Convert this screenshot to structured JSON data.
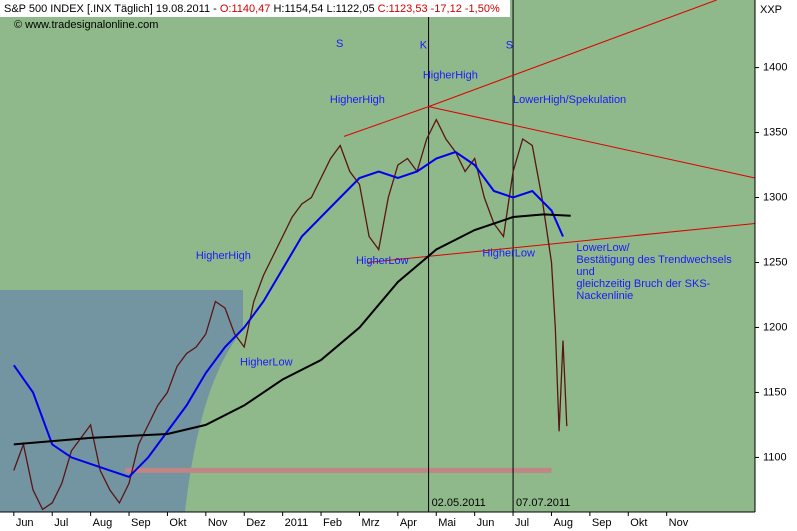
{
  "chart_data": {
    "type": "line",
    "header_parts": [
      {
        "text": "S&P 500 INDEX [.INX  Täglich] 19.08.2011 - ",
        "color": "#000000"
      },
      {
        "text": "O:1140,47",
        "color": "#d00000"
      },
      {
        "text": " H:1154,54 L:1122,05 ",
        "color": "#000000"
      },
      {
        "text": "C:1123,53 -17,12 -1,50%",
        "color": "#d00000"
      }
    ],
    "watermark": "© www.tradesignalonline.com",
    "axis_label": "XXP",
    "xlim": [
      -0.36,
      19.3
    ],
    "ylim": [
      1058,
      1452
    ],
    "yticks": [
      1100,
      1150,
      1200,
      1250,
      1300,
      1350,
      1400
    ],
    "xticks": [
      {
        "value": 0,
        "label": "Jun"
      },
      {
        "value": 1,
        "label": "Jul"
      },
      {
        "value": 2,
        "label": "Aug"
      },
      {
        "value": 3,
        "label": "Sep"
      },
      {
        "value": 4,
        "label": "Okt"
      },
      {
        "value": 5,
        "label": "Nov"
      },
      {
        "value": 6,
        "label": "Dez"
      },
      {
        "value": 7,
        "label": "2011"
      },
      {
        "value": 8,
        "label": "Feb"
      },
      {
        "value": 9,
        "label": "Mrz"
      },
      {
        "value": 10,
        "label": "Apr"
      },
      {
        "value": 11,
        "label": "Mai"
      },
      {
        "value": 12,
        "label": "Jun"
      },
      {
        "value": 13,
        "label": "Jul"
      },
      {
        "value": 14,
        "label": "Aug"
      },
      {
        "value": 15,
        "label": "Sep"
      },
      {
        "value": 16,
        "label": "Okt"
      },
      {
        "value": 17,
        "label": "Nov"
      }
    ],
    "series": [
      {
        "color": "#5a1414",
        "x": [
          0,
          0.25,
          0.5,
          0.75,
          1,
          1.25,
          1.5,
          1.75,
          2,
          2.25,
          2.5,
          2.75,
          3,
          3.25,
          3.5,
          3.75,
          4,
          4.25,
          4.5,
          4.75,
          5,
          5.25,
          5.5,
          5.75,
          6,
          6.25,
          6.5,
          6.75,
          7,
          7.25,
          7.5,
          7.75,
          8,
          8.25,
          8.5,
          8.75,
          9,
          9.25,
          9.5,
          9.75,
          10,
          10.25,
          10.5,
          10.75,
          11,
          11.25,
          11.5,
          11.75,
          12,
          12.25,
          12.5,
          12.75,
          13,
          13.25,
          13.5,
          13.75,
          14,
          14.1,
          14.2,
          14.3,
          14.4
        ],
        "values": [
          1090,
          1110,
          1075,
          1060,
          1065,
          1080,
          1105,
          1115,
          1125,
          1090,
          1075,
          1065,
          1080,
          1110,
          1125,
          1140,
          1150,
          1170,
          1180,
          1185,
          1195,
          1220,
          1215,
          1195,
          1185,
          1220,
          1240,
          1255,
          1270,
          1285,
          1295,
          1300,
          1315,
          1330,
          1340,
          1320,
          1310,
          1270,
          1260,
          1300,
          1325,
          1330,
          1320,
          1345,
          1360,
          1345,
          1335,
          1320,
          1330,
          1300,
          1280,
          1270,
          1320,
          1345,
          1340,
          1300,
          1250,
          1200,
          1120,
          1190,
          1124
        ]
      },
      {
        "color": "#0000ee",
        "x": [
          0,
          0.5,
          1,
          1.5,
          2,
          2.5,
          3,
          3.5,
          4,
          4.5,
          5,
          5.5,
          6,
          6.5,
          7,
          7.5,
          8,
          8.5,
          9,
          9.5,
          10,
          10.5,
          11,
          11.5,
          12,
          12.5,
          13,
          13.5,
          14,
          14.3
        ],
        "values": [
          1171,
          1150,
          1110,
          1100,
          1095,
          1090,
          1085,
          1100,
          1120,
          1140,
          1165,
          1185,
          1200,
          1220,
          1245,
          1270,
          1285,
          1300,
          1315,
          1320,
          1315,
          1320,
          1330,
          1335,
          1325,
          1305,
          1300,
          1305,
          1290,
          1270
        ]
      },
      {
        "color": "#000000",
        "x": [
          0,
          2,
          4,
          5,
          6,
          7,
          8,
          9,
          10,
          11,
          12,
          13,
          13.8,
          14.5
        ],
        "values": [
          1110,
          1115,
          1118,
          1125,
          1140,
          1160,
          1175,
          1200,
          1235,
          1260,
          1275,
          1285,
          1287,
          1286
        ]
      }
    ],
    "trendlines": [
      {
        "x": [
          8.6,
          10.8,
          18.3
        ],
        "values": [
          1347,
          1370,
          1452
        ],
        "color": "#dd0000"
      },
      {
        "x": [
          10.8,
          19.3
        ],
        "values": [
          1370,
          1315
        ],
        "color": "#dd0000"
      },
      {
        "x": [
          9.2,
          19.3
        ],
        "values": [
          1250,
          1280
        ],
        "color": "#dd0000"
      }
    ],
    "band": {
      "x": [
        2.9,
        14.0
      ],
      "value": 1090,
      "color": "#c08585"
    },
    "markers": [
      {
        "x": 10.8,
        "label": "02.05.2011"
      },
      {
        "x": 13.0,
        "label": "07.07.2011"
      }
    ],
    "annotations": [
      {
        "x": 8.39,
        "y": 1418,
        "lines": [
          "S"
        ]
      },
      {
        "x": 10.57,
        "y": 1417,
        "lines": [
          "K"
        ]
      },
      {
        "x": 12.81,
        "y": 1417,
        "lines": [
          "S"
        ]
      },
      {
        "x": 10.65,
        "y": 1394,
        "lines": [
          "HigherHigh"
        ]
      },
      {
        "x": 8.23,
        "y": 1375,
        "lines": [
          "HigherHigh"
        ]
      },
      {
        "x": 13.0,
        "y": 1375,
        "lines": [
          "LowerHigh/Spekulation"
        ]
      },
      {
        "x": 4.74,
        "y": 1255,
        "lines": [
          "HigherHigh"
        ]
      },
      {
        "x": 8.91,
        "y": 1251,
        "lines": [
          "HigherLow"
        ]
      },
      {
        "x": 12.2,
        "y": 1257,
        "lines": [
          "HigherLow"
        ]
      },
      {
        "x": 5.89,
        "y": 1173,
        "lines": [
          "HigherLow"
        ]
      },
      {
        "x": 14.65,
        "y": 1261,
        "lines": [
          "LowerLow/",
          "Bestätigung des Trendwechsels",
          "und",
          "gleichzeitig Bruch der SKS-",
          "Nackenlinie"
        ]
      }
    ]
  }
}
